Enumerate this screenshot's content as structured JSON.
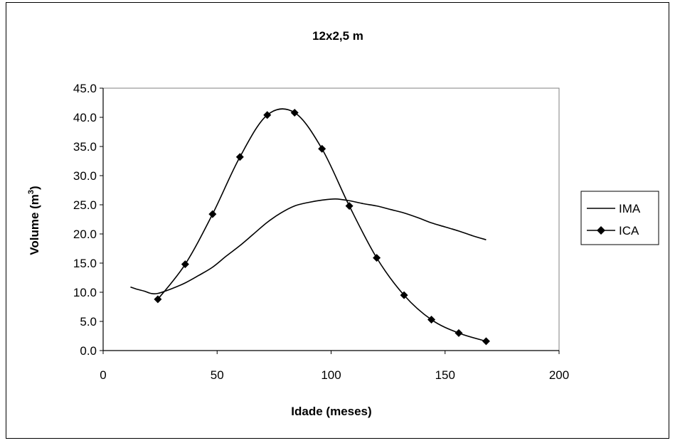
{
  "chart_data": {
    "type": "line",
    "title": "12x2,5 m",
    "xlabel": "Idade (meses)",
    "ylabel_main": "Volume (m",
    "ylabel_sup": "3",
    "ylabel_close": ")",
    "xlim": [
      0,
      200
    ],
    "ylim": [
      0,
      45
    ],
    "x_ticks": [
      0,
      50,
      100,
      150,
      200
    ],
    "x_tick_labels": [
      "0",
      "50",
      "100",
      "150",
      "200"
    ],
    "y_ticks": [
      0,
      5,
      10,
      15,
      20,
      25,
      30,
      35,
      40,
      45
    ],
    "y_tick_labels": [
      "0.0",
      "5.0",
      "10.0",
      "15.0",
      "20.0",
      "25.0",
      "30.0",
      "35.0",
      "40.0",
      "45.0"
    ],
    "grid": false,
    "legend_position": "right",
    "series": [
      {
        "name": "IMA",
        "marker": "none",
        "color": "#000000",
        "x": [
          12,
          15,
          18,
          21,
          24,
          30,
          36,
          42,
          48,
          54,
          60,
          66,
          72,
          78,
          84,
          90,
          96,
          102,
          108,
          114,
          120,
          126,
          132,
          138,
          144,
          150,
          156,
          162,
          168
        ],
        "y": [
          10.9,
          10.5,
          10.2,
          9.8,
          9.8,
          10.6,
          11.6,
          12.9,
          14.3,
          16.2,
          18.0,
          20.0,
          22.0,
          23.6,
          24.8,
          25.4,
          25.8,
          26.0,
          25.7,
          25.2,
          24.8,
          24.2,
          23.6,
          22.8,
          21.9,
          21.2,
          20.5,
          19.7,
          19.0
        ]
      },
      {
        "name": "ICA",
        "marker": "diamond",
        "color": "#000000",
        "x": [
          24,
          36,
          48,
          60,
          72,
          84,
          96,
          108,
          120,
          132,
          144,
          156,
          168
        ],
        "y": [
          8.8,
          14.8,
          23.4,
          33.2,
          40.4,
          40.8,
          34.6,
          24.8,
          15.9,
          9.5,
          5.3,
          3.0,
          1.6
        ]
      }
    ]
  }
}
